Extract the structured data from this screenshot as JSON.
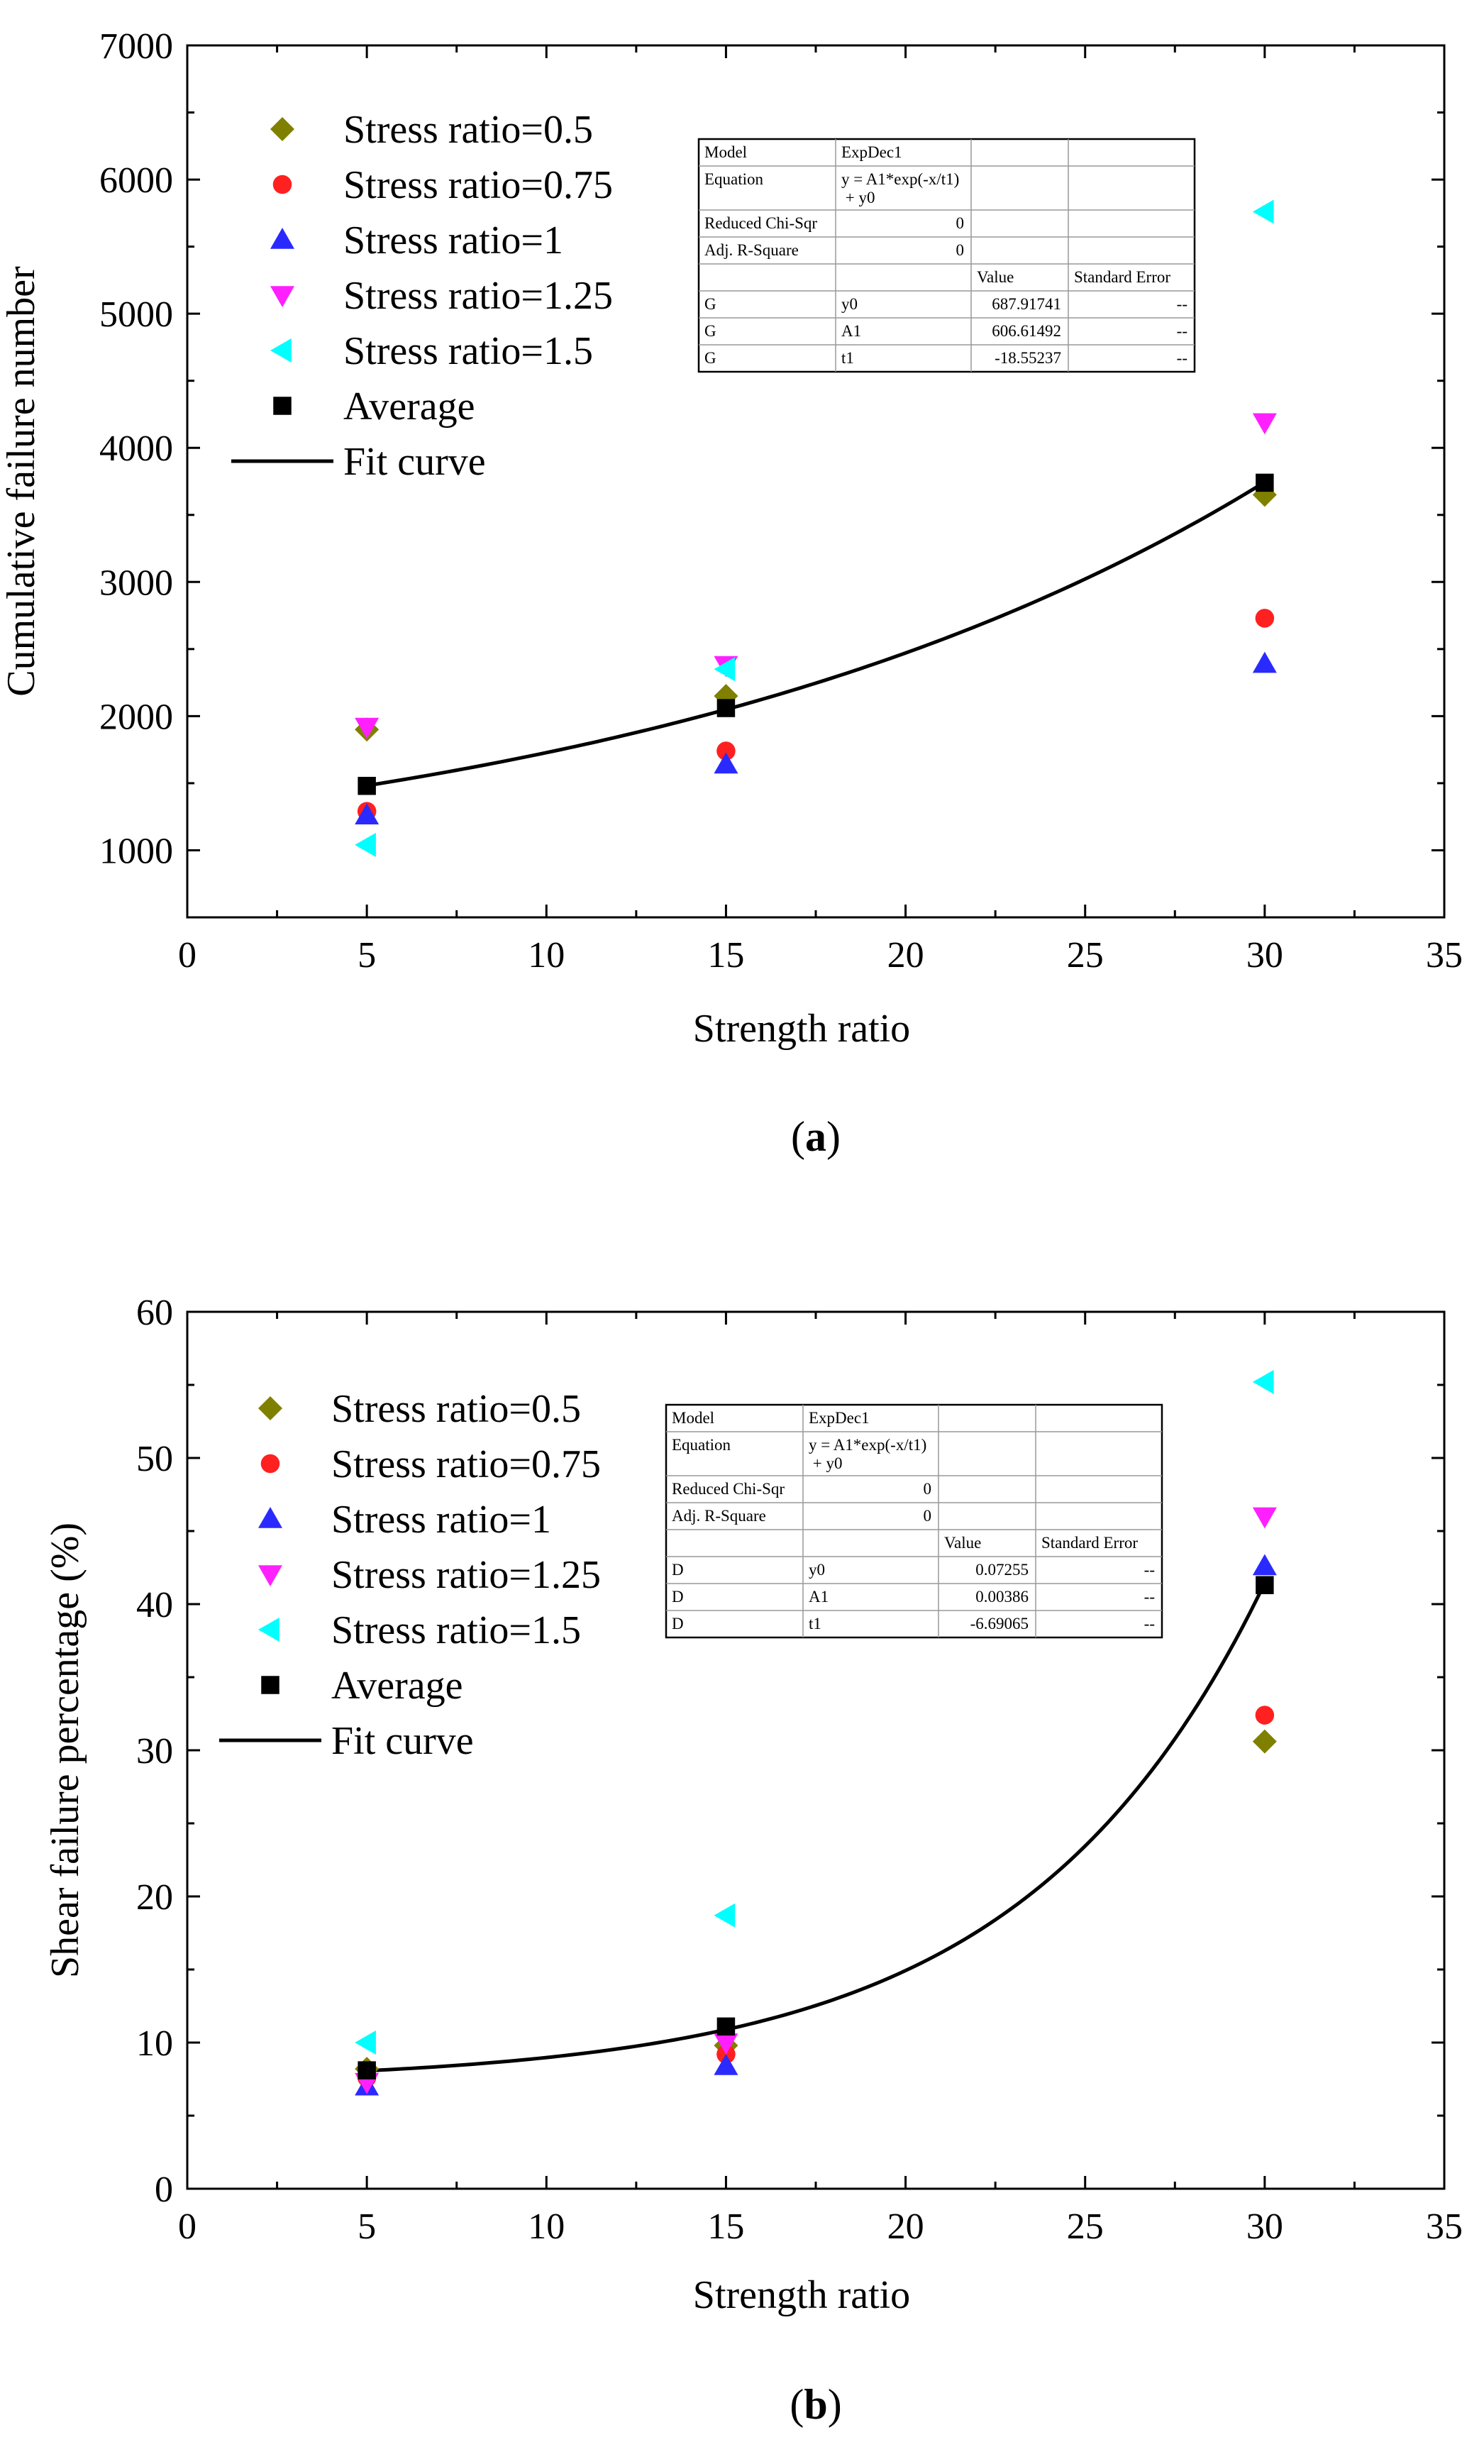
{
  "chart_data": [
    {
      "type": "scatter",
      "panel_label": "a",
      "xlabel": "Strength ratio",
      "ylabel": "Cumulative failure number",
      "xlim": [
        0,
        35
      ],
      "ylim": [
        500,
        7000
      ],
      "x_ticks": [
        0,
        5,
        10,
        15,
        20,
        25,
        30,
        35
      ],
      "y_ticks": [
        1000,
        2000,
        3000,
        4000,
        5000,
        6000,
        7000
      ],
      "x_tick_labels": [
        "0",
        "5",
        "10",
        "15",
        "20",
        "25",
        "30",
        "35"
      ],
      "y_tick_labels": [
        "1000",
        "2000",
        "3000",
        "4000",
        "5000",
        "6000",
        "7000"
      ],
      "legend_position": "top-left",
      "series": [
        {
          "name": "Stress ratio=0.5",
          "marker": "diamond",
          "color": "#808000",
          "x": [
            5,
            15,
            30
          ],
          "y": [
            1900,
            2150,
            3650
          ]
        },
        {
          "name": "Stress ratio=0.75",
          "marker": "circle",
          "color": "#ff2020",
          "x": [
            5,
            15,
            30
          ],
          "y": [
            1290,
            1740,
            2730
          ]
        },
        {
          "name": "Stress ratio=1",
          "marker": "triangle-up",
          "color": "#2a2aff",
          "x": [
            5,
            15,
            30
          ],
          "y": [
            1260,
            1640,
            2390
          ]
        },
        {
          "name": "Stress ratio=1.25",
          "marker": "triangle-down",
          "color": "#ff20ff",
          "x": [
            5,
            15,
            30
          ],
          "y": [
            1920,
            2380,
            4190
          ]
        },
        {
          "name": "Stress ratio=1.5",
          "marker": "triangle-left",
          "color": "#00ffff",
          "x": [
            5,
            15,
            30
          ],
          "y": [
            1040,
            2350,
            5760
          ]
        },
        {
          "name": "Average",
          "marker": "square",
          "color": "#000000",
          "x": [
            5,
            15,
            30
          ],
          "y": [
            1480,
            2060,
            3740
          ]
        }
      ],
      "fit": {
        "name": "Fit curve",
        "model": "ExpDec1",
        "y0": 687.91741,
        "A1": 606.61492,
        "t1": -18.55237,
        "x_range": [
          5,
          30
        ]
      },
      "fit_table": {
        "rows": [
          [
            "Model",
            "ExpDec1",
            "",
            ""
          ],
          [
            "Equation",
            "y = A1*exp(-x/t1)\n + y0",
            "",
            ""
          ],
          [
            "Reduced Chi-Sqr",
            "0",
            "",
            ""
          ],
          [
            "Adj. R-Square",
            "0",
            "",
            ""
          ],
          [
            "",
            "",
            "Value",
            "Standard Error"
          ],
          [
            "G",
            "y0",
            "687.91741",
            "--"
          ],
          [
            "G",
            "A1",
            "606.61492",
            "--"
          ],
          [
            "G",
            "t1",
            "-18.55237",
            "--"
          ]
        ]
      }
    },
    {
      "type": "scatter",
      "panel_label": "b",
      "xlabel": "Strength ratio",
      "ylabel": "Shear failure percentage (%)",
      "xlim": [
        0,
        35
      ],
      "ylim": [
        0,
        60
      ],
      "x_ticks": [
        0,
        5,
        10,
        15,
        20,
        25,
        30,
        35
      ],
      "y_ticks": [
        0,
        10,
        20,
        30,
        40,
        50,
        60
      ],
      "x_tick_labels": [
        "0",
        "5",
        "10",
        "15",
        "20",
        "25",
        "30",
        "35"
      ],
      "y_tick_labels": [
        "0",
        "10",
        "20",
        "30",
        "40",
        "50",
        "60"
      ],
      "legend_position": "top-left",
      "series": [
        {
          "name": "Stress ratio=0.5",
          "marker": "diamond",
          "color": "#808000",
          "x": [
            5,
            15,
            30
          ],
          "y": [
            8.2,
            9.8,
            30.6
          ]
        },
        {
          "name": "Stress ratio=0.75",
          "marker": "circle",
          "color": "#ff2020",
          "x": [
            5,
            15,
            30
          ],
          "y": [
            7.6,
            9.2,
            32.4
          ]
        },
        {
          "name": "Stress ratio=1",
          "marker": "triangle-up",
          "color": "#2a2aff",
          "x": [
            5,
            15,
            30
          ],
          "y": [
            7.0,
            8.4,
            42.6
          ]
        },
        {
          "name": "Stress ratio=1.25",
          "marker": "triangle-down",
          "color": "#ff20ff",
          "x": [
            5,
            15,
            30
          ],
          "y": [
            7.3,
            10.0,
            46.0
          ]
        },
        {
          "name": "Stress ratio=1.5",
          "marker": "triangle-left",
          "color": "#00ffff",
          "x": [
            5,
            15,
            30
          ],
          "y": [
            10.0,
            18.7,
            55.2
          ]
        },
        {
          "name": "Average",
          "marker": "square",
          "color": "#000000",
          "x": [
            5,
            15,
            30
          ],
          "y": [
            8.1,
            11.1,
            41.3
          ]
        }
      ],
      "fit": {
        "name": "Fit curve",
        "model": "ExpDec1",
        "y0": 0.07255,
        "A1": 0.00386,
        "t1": -6.69065,
        "x_range": [
          5,
          30
        ]
      },
      "fit_table": {
        "rows": [
          [
            "Model",
            "ExpDec1",
            "",
            ""
          ],
          [
            "Equation",
            "y = A1*exp(-x/t1)\n + y0",
            "",
            ""
          ],
          [
            "Reduced Chi-Sqr",
            "0",
            "",
            ""
          ],
          [
            "Adj. R-Square",
            "0",
            "",
            ""
          ],
          [
            "",
            "",
            "Value",
            "Standard Error"
          ],
          [
            "D",
            "y0",
            "0.07255",
            "--"
          ],
          [
            "D",
            "A1",
            "0.00386",
            "--"
          ],
          [
            "D",
            "t1",
            "-6.69065",
            "--"
          ]
        ]
      }
    }
  ]
}
